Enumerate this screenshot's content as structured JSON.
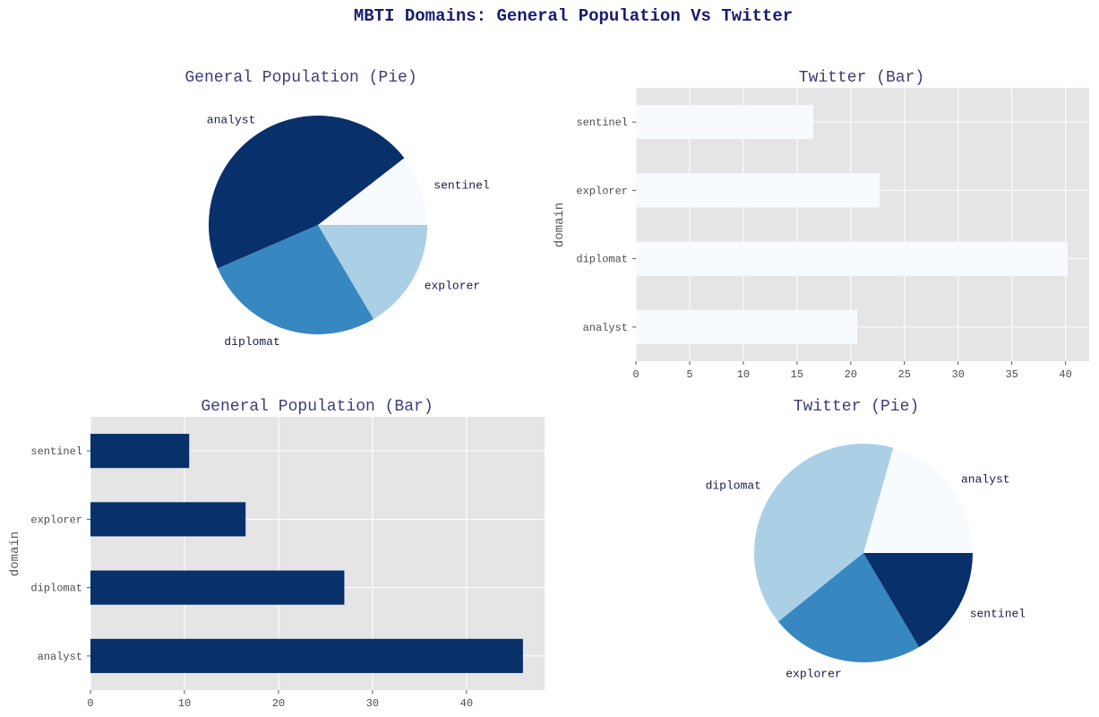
{
  "title": "MBTI Domains: General Population Vs Twitter",
  "chart_data": [
    {
      "type": "pie",
      "title": "General Population (Pie)",
      "categories": [
        "sentinel",
        "analyst",
        "diplomat",
        "explorer"
      ],
      "values": [
        10.5,
        46,
        27,
        16.5
      ],
      "colors": [
        "#f7fbff",
        "#08306b",
        "#3787c0",
        "#abd0e6"
      ]
    },
    {
      "type": "bar",
      "orientation": "horizontal",
      "title": "Twitter (Bar)",
      "categories": [
        "analyst",
        "diplomat",
        "explorer",
        "sentinel"
      ],
      "values": [
        20.6,
        40.2,
        22.7,
        16.5
      ],
      "ylabel": "domain",
      "xlim": [
        0,
        42.2
      ],
      "xticks": [
        0,
        5,
        10,
        15,
        20,
        25,
        30,
        35,
        40
      ],
      "bar_color": "#f7fbff",
      "grid": true
    },
    {
      "type": "bar",
      "orientation": "horizontal",
      "title": "General Population (Bar)",
      "categories": [
        "analyst",
        "diplomat",
        "explorer",
        "sentinel"
      ],
      "values": [
        46,
        27,
        16.5,
        10.5
      ],
      "ylabel": "domain",
      "xlim": [
        0,
        48.3
      ],
      "xticks": [
        0,
        10,
        20,
        30,
        40
      ],
      "bar_color": "#08306b",
      "grid": true
    },
    {
      "type": "pie",
      "title": "Twitter (Pie)",
      "categories": [
        "analyst",
        "diplomat",
        "explorer",
        "sentinel"
      ],
      "values": [
        20.6,
        40.2,
        22.7,
        16.5
      ],
      "colors": [
        "#f7fbff",
        "#abd0e6",
        "#3787c0",
        "#08306b"
      ]
    }
  ]
}
